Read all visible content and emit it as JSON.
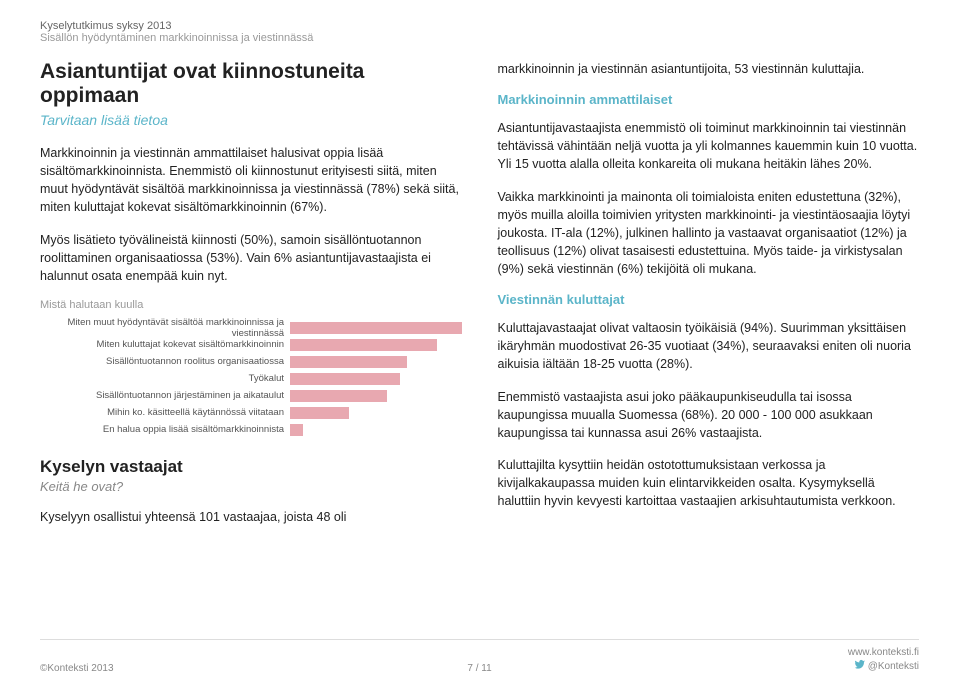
{
  "header": {
    "line1": "Kyselytutkimus syksy 2013",
    "line2": "Sisällön hyödyntäminen markkinoinnissa ja viestinnässä"
  },
  "left": {
    "title": "Asiantuntijat ovat kiinnostuneita oppimaan",
    "subtitle": "Tarvitaan lisää tietoa",
    "p1": "Markkinoinnin ja viestinnän ammattilaiset halusivat oppia lisää sisältömarkkinoinnista. Enemmistö oli kiinnostunut erityisesti siitä, miten muut hyödyntävät sisältöä markkinoinnissa ja viestinnässä (78%) sekä siitä, miten kuluttajat kokevat sisältömarkkinoinnin (67%).",
    "p2": "Myös lisätieto työvälineistä kiinnosti (50%), samoin sisällöntuotannon roolittaminen organisaatiossa (53%). Vain 6% asiantuntijavastaajista ei halunnut osata enempää kuin nyt.",
    "chart_heading": "Mistä halutaan kuulla",
    "chart": {
      "type": "bar",
      "bar_color": "#e8a8b0",
      "max_value": 78,
      "rows": [
        {
          "label": "Miten muut hyödyntävät sisältöä markkinoinnissa ja viestinnässä",
          "value": 78
        },
        {
          "label": "Miten kuluttajat kokevat sisältömarkkinoinnin",
          "value": 67
        },
        {
          "label": "Sisällöntuotannon roolitus organisaatiossa",
          "value": 53
        },
        {
          "label": "Työkalut",
          "value": 50
        },
        {
          "label": "Sisällöntuotannon järjestäminen ja aikataulut",
          "value": 44
        },
        {
          "label": "Mihin ko. käsitteellä käytännössä viitataan",
          "value": 27
        },
        {
          "label": "En halua oppia lisää sisältömarkkinoinnista",
          "value": 6
        }
      ]
    },
    "sub_title": "Kyselyn vastaajat",
    "sub_subtitle": "Keitä he ovat?",
    "p3": "Kyselyyn osallistui yhteensä 101 vastaajaa, joista 48 oli"
  },
  "right": {
    "top": "markkinoinnin ja viestinnän asiantuntijoita, 53 viestinnän kuluttajia.",
    "h1": "Markkinoinnin ammattilaiset",
    "p1": "Asiantuntijavastaajista enemmistö oli toiminut markkinoinnin tai viestinnän tehtävissä vähintään neljä vuotta ja yli kolmannes kauemmin kuin 10 vuotta. Yli 15 vuotta alalla olleita konkareita oli mukana heitäkin lähes 20%.",
    "p2": "Vaikka markkinointi ja mainonta oli toimialoista eniten edustettuna (32%), myös muilla aloilla toimivien yritysten markkinointi- ja viestintäosaajia löytyi joukosta. IT-ala (12%), julkinen hallinto ja vastaavat organisaatiot (12%) ja teollisuus (12%) olivat tasaisesti edustettuina. Myös taide- ja virkistysalan (9%) sekä viestinnän (6%) tekijöitä oli mukana.",
    "h2": "Viestinnän kuluttajat",
    "p3": "Kuluttajavastaajat olivat valtaosin työikäisiä (94%). Suurimman yksittäisen ikäryhmän muodostivat 26-35 vuotiaat (34%), seuraavaksi eniten oli nuoria aikuisia iältään 18-25 vuotta (28%).",
    "p4": "Enemmistö vastaajista asui joko pääkaupunkiseudulla tai isossa kaupungissa muualla Suomessa (68%). 20 000 - 100 000 asukkaan kaupungissa tai kunnassa asui 26% vastaajista.",
    "p5": "Kuluttajilta kysyttiin heidän ostotottumuksistaan verkossa ja kivijalkakaupassa muiden kuin elintarvikkeiden osalta. Kysymyksellä haluttiin hyvin kevyesti kartoittaa vastaajien arkisuhtautumista verkkoon."
  },
  "footer": {
    "left": "©Konteksti 2013",
    "center": "7 / 11",
    "site": "www.konteksti.fi",
    "handle": "@Konteksti"
  },
  "colors": {
    "accent_teal": "#5bb5c9",
    "bar_pink": "#e8a8b0",
    "text_gray": "#888"
  }
}
